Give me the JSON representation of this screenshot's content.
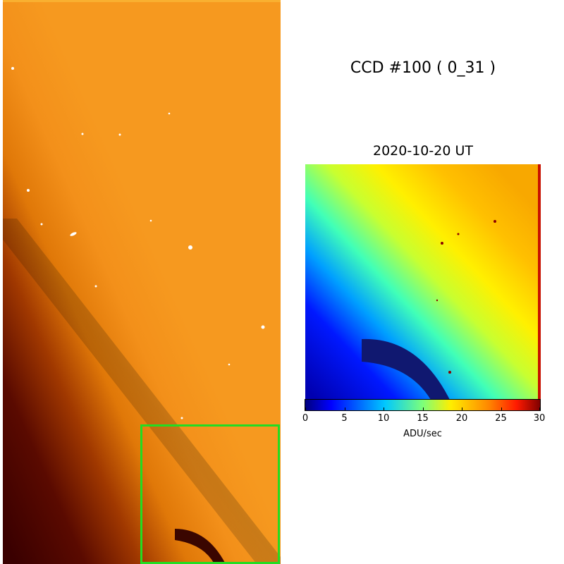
{
  "title": "CCD #100 ( 0_31 )",
  "date": "2020-10-20 UT",
  "colorbar": {
    "label": "ADU/sec",
    "min": 0,
    "max": 30,
    "ticks": [
      "0",
      "5",
      "10",
      "15",
      "20",
      "25",
      "30"
    ],
    "colormap": "jet"
  },
  "highlight_color": "#22dd22"
}
